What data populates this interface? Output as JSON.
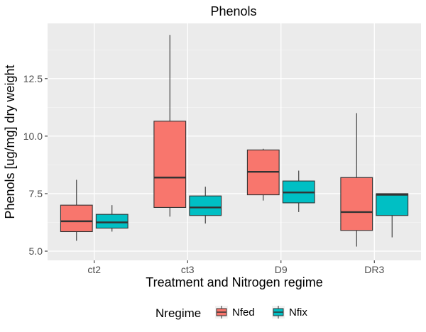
{
  "chart_data": {
    "type": "boxplot",
    "title": "Phenols",
    "xlabel": "Treatment and Nitrogen regime",
    "ylabel": "Phenols [ug/mg] dry weight",
    "categories": [
      "ct2",
      "ct3",
      "D9",
      "DR3"
    ],
    "yticks": [
      5.0,
      7.5,
      10.0,
      12.5
    ],
    "ytick_labels": [
      "5.0",
      "7.5",
      "10.0",
      "12.5"
    ],
    "ylim": [
      4.6,
      14.9
    ],
    "grid": true,
    "legend": {
      "title": "Nregime",
      "position": "bottom"
    },
    "series": [
      {
        "name": "Nfed",
        "color": "#f8766d",
        "boxes": [
          {
            "min": 5.45,
            "q1": 5.85,
            "median": 6.3,
            "q3": 7.0,
            "max": 8.1
          },
          {
            "min": 6.5,
            "q1": 6.9,
            "median": 8.2,
            "q3": 10.65,
            "max": 14.4
          },
          {
            "min": 7.2,
            "q1": 7.45,
            "median": 8.45,
            "q3": 9.4,
            "max": 9.45
          },
          {
            "min": 5.2,
            "q1": 5.9,
            "median": 6.7,
            "q3": 8.2,
            "max": 11.0
          }
        ]
      },
      {
        "name": "Nfix",
        "color": "#00bfc4",
        "boxes": [
          {
            "min": 5.85,
            "q1": 6.0,
            "median": 6.25,
            "q3": 6.6,
            "max": 7.0
          },
          {
            "min": 6.2,
            "q1": 6.55,
            "median": 6.9,
            "q3": 7.4,
            "max": 7.8
          },
          {
            "min": 6.7,
            "q1": 7.1,
            "median": 7.55,
            "q3": 8.05,
            "max": 8.5
          },
          {
            "min": 5.6,
            "q1": 6.55,
            "median": 7.45,
            "q3": 7.5,
            "max": 7.5
          }
        ]
      }
    ]
  }
}
